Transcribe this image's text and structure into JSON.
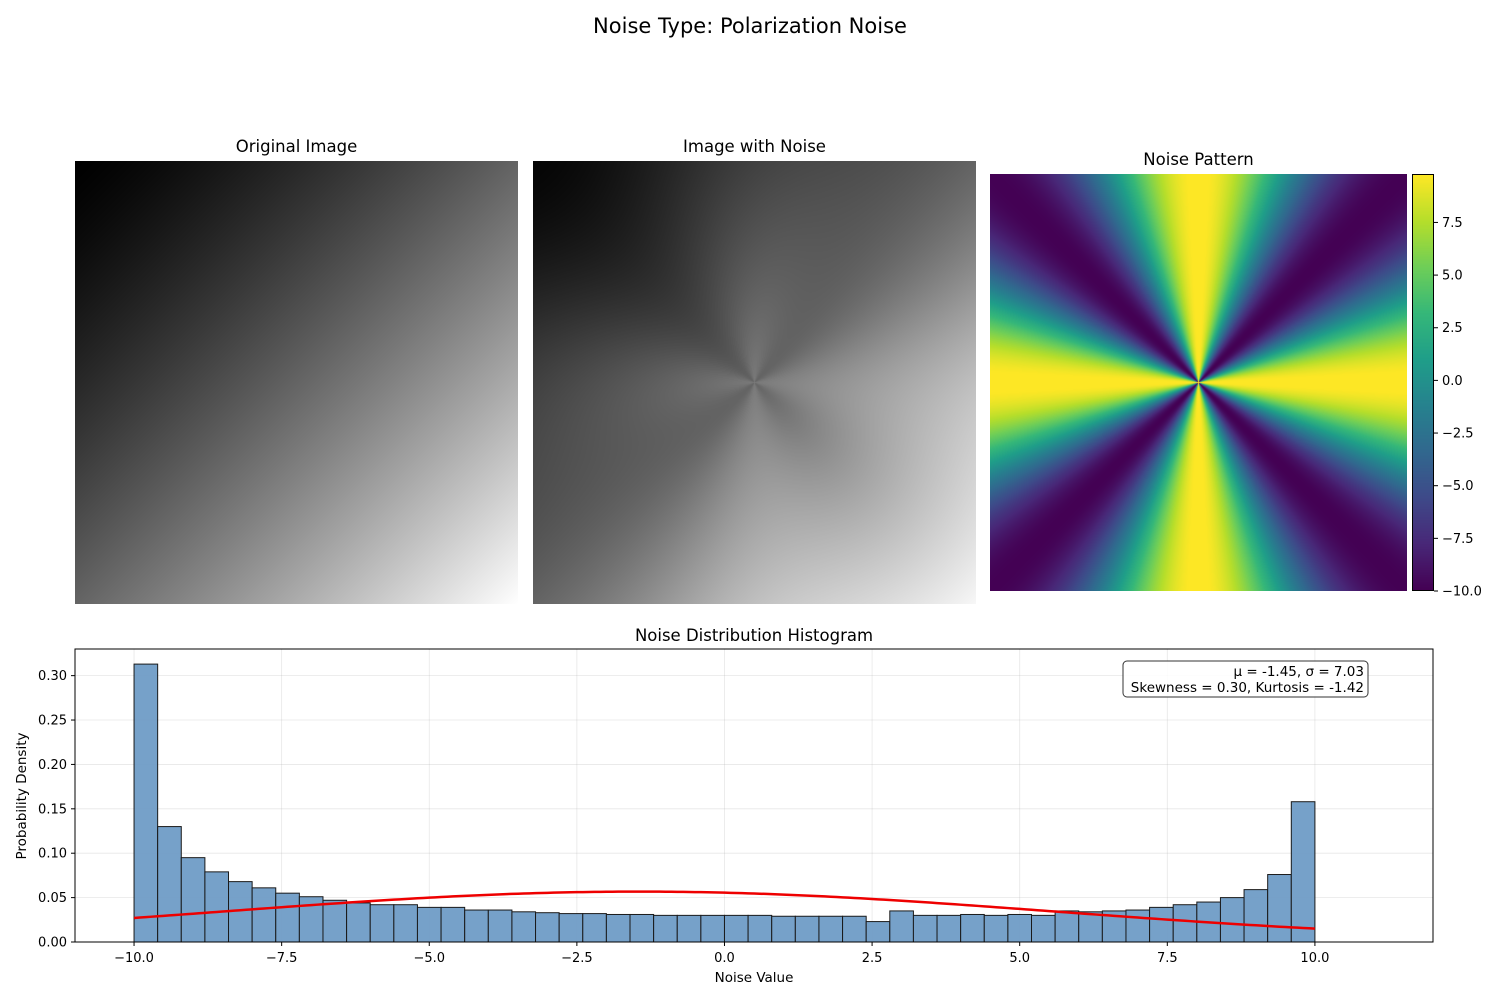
{
  "figure": {
    "title": "Noise Type: Polarization Noise"
  },
  "panels": {
    "original": {
      "title": "Original Image"
    },
    "noisy": {
      "title": "Image with Noise"
    },
    "pattern": {
      "title": "Noise Pattern",
      "colormap": "viridis",
      "colorbar_ticks": [
        "7.5",
        "5.0",
        "2.5",
        "0.0",
        "−2.5",
        "−5.0",
        "−7.5",
        "−10.0"
      ],
      "colorbar_range": [
        -10,
        9.8
      ]
    }
  },
  "chart_data": {
    "type": "bar",
    "title": "Noise Distribution Histogram",
    "xlabel": "Noise Value",
    "ylabel": "Probability Density",
    "xlim": [
      -11.0,
      12.0
    ],
    "ylim": [
      0,
      0.33
    ],
    "grid": true,
    "bar_color": "#6f9cc6",
    "fit_color": "#ee0000",
    "xticks": [
      "−10.0",
      "−7.5",
      "−5.0",
      "−2.5",
      "0.0",
      "2.5",
      "5.0",
      "7.5",
      "10.0"
    ],
    "xtick_values": [
      -10,
      -7.5,
      -5,
      -2.5,
      0,
      2.5,
      5,
      7.5,
      10
    ],
    "yticks": [
      "0.00",
      "0.05",
      "0.10",
      "0.15",
      "0.20",
      "0.25",
      "0.30"
    ],
    "ytick_values": [
      0,
      0.05,
      0.1,
      0.15,
      0.2,
      0.25,
      0.3
    ],
    "bins": {
      "start": -10.0,
      "width": 0.4
    },
    "values": [
      0.313,
      0.13,
      0.095,
      0.079,
      0.068,
      0.061,
      0.055,
      0.051,
      0.047,
      0.044,
      0.042,
      0.042,
      0.039,
      0.039,
      0.036,
      0.036,
      0.034,
      0.033,
      0.032,
      0.032,
      0.031,
      0.031,
      0.03,
      0.03,
      0.03,
      0.03,
      0.03,
      0.029,
      0.029,
      0.029,
      0.029,
      0.023,
      0.035,
      0.03,
      0.03,
      0.031,
      0.03,
      0.031,
      0.03,
      0.035,
      0.034,
      0.035,
      0.036,
      0.039,
      0.042,
      0.045,
      0.05,
      0.059,
      0.076,
      0.158
    ],
    "fit": {
      "mean": -1.45,
      "std": 7.03
    },
    "stats_box": {
      "line1": "μ = -1.45, σ = 7.03",
      "line2": "Skewness = 0.30, Kurtosis = -1.42",
      "placement": "top-right"
    }
  }
}
